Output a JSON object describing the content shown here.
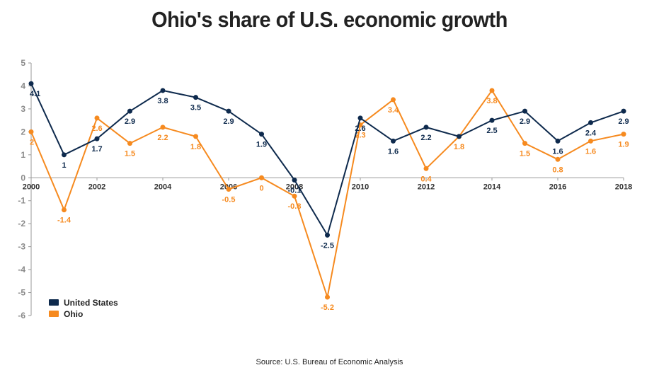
{
  "title": "Ohio's share of U.S. economic growth",
  "source": "Source: U.S. Bureau of Economic Analysis",
  "chart_data": {
    "type": "line",
    "title": "Ohio's share of U.S. economic growth",
    "xlabel": "",
    "ylabel": "",
    "x": [
      2000,
      2001,
      2002,
      2003,
      2004,
      2005,
      2006,
      2007,
      2008,
      2009,
      2010,
      2011,
      2012,
      2013,
      2014,
      2015,
      2016,
      2017,
      2018
    ],
    "x_tick_labels": [
      "2000",
      "2002",
      "2004",
      "2006",
      "2008",
      "2010",
      "2012",
      "2014",
      "2016",
      "2018"
    ],
    "ylim": [
      -6,
      5
    ],
    "y_ticks": [
      5,
      4,
      3,
      2,
      1,
      0,
      -1,
      -2,
      -3,
      -4,
      -5,
      -6
    ],
    "grid": false,
    "legend_position": "bottom-left",
    "series": [
      {
        "name": "United States",
        "color": "#0e2a4d",
        "values": [
          4.1,
          1,
          1.7,
          2.9,
          3.8,
          3.5,
          2.9,
          1.9,
          -0.1,
          -2.5,
          2.6,
          1.6,
          2.2,
          1.8,
          2.5,
          2.9,
          1.6,
          2.4,
          2.9
        ],
        "labels": [
          "4.1",
          "1",
          "1.7",
          "2.9",
          "3.8",
          "3.5",
          "2.9",
          "1.9",
          "-0.1",
          "-2.5",
          "2.6",
          "1.6",
          "2.2",
          "",
          "2.5",
          "2.9",
          "1.6",
          "2.4",
          "2.9"
        ]
      },
      {
        "name": "Ohio",
        "color": "#f68a1f",
        "values": [
          2,
          -1.4,
          2.6,
          1.5,
          2.2,
          1.8,
          -0.5,
          0,
          -0.8,
          -5.2,
          2.3,
          3.4,
          0.4,
          1.8,
          3.8,
          1.5,
          0.8,
          1.6,
          1.9
        ],
        "labels": [
          "2",
          "-1.4",
          "2.6",
          "1.5",
          "2.2",
          "1.8",
          "-0.5",
          "0",
          "-0.8",
          "-5.2",
          "2.3",
          "3.4",
          "0.4",
          "1.8",
          "3.8",
          "1.5",
          "0.8",
          "1.6",
          "1.9"
        ]
      }
    ]
  }
}
